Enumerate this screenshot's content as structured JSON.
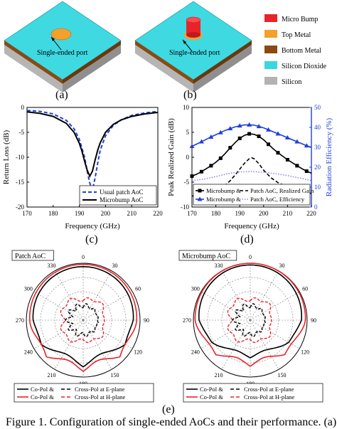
{
  "panels": {
    "a": {
      "label": "(a)",
      "port_label": "Single-ended port"
    },
    "b": {
      "label": "(b)",
      "port_label": "Single-ended port"
    },
    "c": {
      "label": "(c)"
    },
    "d": {
      "label": "(d)"
    },
    "e": {
      "label": "(e)"
    }
  },
  "legend_layers": {
    "items": [
      {
        "label": "Micro Bump",
        "color": "#e8242a"
      },
      {
        "label": "Top Metal",
        "color": "#f4a02a"
      },
      {
        "label": "Bottom Metal",
        "color": "#8a4a12"
      },
      {
        "label": "Silicon Dioxide",
        "color": "#39d7df"
      },
      {
        "label": "Silicon",
        "color": "#b3b3b3"
      }
    ]
  },
  "caption": "Figure 1. Configuration of single-ended AoCs and their performance. (a)",
  "chart_data": [
    {
      "id": "c",
      "type": "line",
      "xlabel": "Frequency (GHz)",
      "ylabel": "Return Loss (dB)",
      "xlim": [
        170,
        220
      ],
      "ylim": [
        -20,
        0
      ],
      "xticks": [
        170,
        180,
        190,
        200,
        210,
        220
      ],
      "yticks": [
        0,
        -5,
        -10,
        -15,
        -20
      ],
      "legend_position": "bottom-right",
      "series": [
        {
          "name": "Usual patch AoC",
          "style": "dashed",
          "color": "#1f3fd8",
          "x": [
            170,
            175,
            180,
            185,
            188,
            190,
            192,
            193,
            194,
            195,
            196,
            197,
            198,
            200,
            203,
            206,
            210,
            215,
            220
          ],
          "y": [
            -0.6,
            -0.8,
            -1.3,
            -2.6,
            -4.3,
            -6.4,
            -10,
            -12.8,
            -15.2,
            -16.6,
            -14.2,
            -11.2,
            -8.6,
            -5.7,
            -3.6,
            -2.5,
            -1.6,
            -1.1,
            -0.8
          ]
        },
        {
          "name": "Microbump AoC",
          "style": "solid",
          "color": "#000000",
          "x": [
            170,
            175,
            180,
            185,
            188,
            190,
            191,
            192,
            193,
            194,
            195,
            196,
            197,
            198,
            200,
            203,
            206,
            210,
            215,
            220
          ],
          "y": [
            -0.9,
            -1.2,
            -1.8,
            -3.2,
            -5.0,
            -7.2,
            -8.8,
            -10.8,
            -12.6,
            -13.8,
            -12.8,
            -10.6,
            -8.6,
            -7.1,
            -5.0,
            -3.4,
            -2.5,
            -1.8,
            -1.3,
            -1.0
          ]
        }
      ]
    },
    {
      "id": "d",
      "type": "line",
      "xlabel": "Frequency (GHz)",
      "ylabel": "Peak Realized Gain (dB)",
      "y2label": "Radiation Efficiency (%)",
      "xlim": [
        170,
        220
      ],
      "ylim": [
        -10,
        10
      ],
      "y2lim": [
        0,
        50
      ],
      "xticks": [
        170,
        180,
        190,
        200,
        210,
        220
      ],
      "yticks": [
        10,
        5,
        0,
        -5,
        -10
      ],
      "y2ticks": [
        0,
        10,
        20,
        30,
        40,
        50
      ],
      "legend_position": "bottom",
      "legend": [
        {
          "text": "Microbump &",
          "marker": "square",
          "color": "#000000"
        },
        {
          "text": "Patch AoC, Realized Gain",
          "style": "dashed",
          "color": "#000000"
        },
        {
          "text": "Microbump &",
          "marker": "triangle",
          "color": "#1f3fd8"
        },
        {
          "text": "Patch AoC, Efficiency",
          "style": "dotted",
          "color": "#8888ee"
        }
      ],
      "series": [
        {
          "axis": "left",
          "style": "solid",
          "marker": "square",
          "color": "#000000",
          "x": [
            170,
            172,
            174,
            176,
            178,
            180,
            182,
            184,
            186,
            188,
            190,
            192,
            194,
            196,
            198,
            200,
            202,
            204,
            206,
            208,
            210,
            212,
            214,
            216,
            218,
            220
          ],
          "y": [
            -3.8,
            -3.4,
            -2.9,
            -2.3,
            -1.7,
            -1.0,
            -0.2,
            0.8,
            1.9,
            2.9,
            3.8,
            4.4,
            4.7,
            4.6,
            4.2,
            3.5,
            2.6,
            1.7,
            0.9,
            0.2,
            -0.5,
            -1.1,
            -1.7,
            -2.3,
            -2.8,
            -3.2
          ]
        },
        {
          "axis": "left",
          "style": "dashed",
          "color": "#000000",
          "x": [
            170,
            175,
            180,
            183,
            186,
            188,
            190,
            192,
            194,
            195,
            196,
            198,
            200,
            203,
            206,
            210,
            215,
            220
          ],
          "y": [
            -7.8,
            -7.5,
            -6.9,
            -6.0,
            -4.7,
            -3.6,
            -2.4,
            -1.2,
            -0.3,
            -0.1,
            -0.3,
            -1.3,
            -2.6,
            -4.1,
            -5.1,
            -6.0,
            -6.8,
            -7.3
          ]
        },
        {
          "axis": "right",
          "style": "solid",
          "marker": "triangle",
          "color": "#1f3fd8",
          "x": [
            170,
            172,
            174,
            176,
            178,
            180,
            182,
            184,
            186,
            188,
            190,
            192,
            194,
            196,
            198,
            200,
            202,
            204,
            206,
            208,
            210,
            212,
            214,
            216,
            218,
            220
          ],
          "y": [
            30.5,
            31.6,
            32.8,
            34.0,
            35.2,
            36.3,
            37.4,
            38.5,
            39.4,
            40.2,
            40.8,
            41.2,
            41.3,
            41.1,
            40.5,
            39.7,
            38.8,
            37.8,
            36.8,
            35.8,
            34.8,
            33.8,
            32.8,
            31.8,
            30.8,
            30.0
          ]
        },
        {
          "axis": "right",
          "style": "dotted",
          "color": "#8888ee",
          "x": [
            170,
            175,
            180,
            185,
            190,
            195,
            200,
            205,
            210,
            215,
            220
          ],
          "y": [
            13.3,
            14.0,
            15.3,
            16.8,
            17.6,
            17.8,
            17.5,
            16.8,
            15.8,
            14.6,
            13.3
          ]
        }
      ]
    },
    {
      "id": "e-left",
      "type": "polar",
      "title": "Patch AoC",
      "angle_ticks": [
        0,
        30,
        60,
        90,
        120,
        150,
        180,
        -150,
        -120,
        -90,
        -60,
        -30
      ],
      "angle_tick_labels": [
        "0",
        "30",
        "60",
        "90",
        "120",
        "150",
        "180",
        "210",
        "240",
        "270",
        "300",
        "330"
      ]
    },
    {
      "id": "e-right",
      "type": "polar",
      "title": "Microbump AoC",
      "angle_ticks": [
        0,
        30,
        60,
        90,
        120,
        150,
        180,
        -150,
        -120,
        -90,
        -60,
        -30
      ],
      "angle_tick_labels": [
        "0",
        "30",
        "60",
        "90",
        "120",
        "150",
        "180",
        "210",
        "240",
        "270",
        "300",
        "330"
      ]
    }
  ],
  "polar_legend": [
    {
      "text": "Co-Pol &",
      "style": "solid",
      "color": "#000000"
    },
    {
      "text": "Cross-Pol at E-plane",
      "style": "dashed",
      "color": "#000000"
    },
    {
      "text": "Co-Pol &",
      "style": "solid",
      "color": "#e8242a"
    },
    {
      "text": "Cross-Pol at H-plane",
      "style": "dashed",
      "color": "#e8242a"
    }
  ]
}
